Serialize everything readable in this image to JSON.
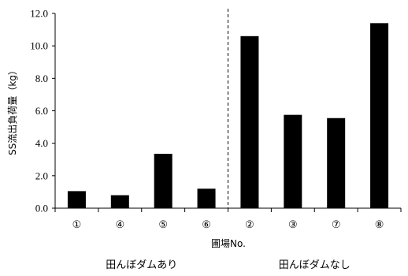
{
  "chart_data": {
    "type": "bar",
    "categories": [
      "①",
      "④",
      "⑤",
      "⑥",
      "②",
      "③",
      "⑦",
      "⑧"
    ],
    "values": [
      1.05,
      0.8,
      3.35,
      1.2,
      10.6,
      5.75,
      5.55,
      11.4
    ],
    "ylabel": "SS流出負荷量（kg）",
    "xlabel": "圃場No.",
    "ylim": [
      0,
      12
    ],
    "yticks": [
      "0.0",
      "2.0",
      "4.0",
      "6.0",
      "8.0",
      "10.0",
      "12.0"
    ],
    "grid": false,
    "bar_color": "#000000",
    "divider": {
      "after_index": 3,
      "style": "dashed"
    },
    "groups": [
      {
        "label": "田んぼダムあり",
        "start": 0,
        "end": 3
      },
      {
        "label": "田んぼダムなし",
        "start": 4,
        "end": 7
      }
    ]
  }
}
